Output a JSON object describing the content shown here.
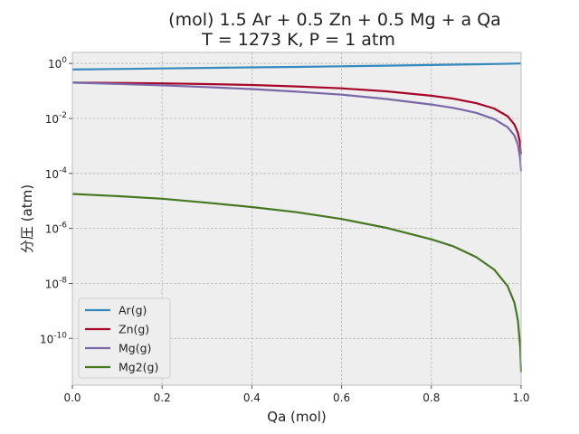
{
  "chart_data": {
    "type": "line",
    "title_line1": "(mol) 1.5 Ar + 0.5 Zn + 0.5 Mg + a Qa",
    "title_line2": "T = 1273 K, P = 1 atm",
    "xlabel": "Qa (mol)",
    "ylabel": "分圧 (atm)",
    "yscale": "log",
    "xlim": [
      0,
      1
    ],
    "ylim_exp": [
      -11.7,
      0.4
    ],
    "grid": true,
    "legend_position": "lower-left",
    "xticks": [
      "0.0",
      "0.2",
      "0.4",
      "0.6",
      "0.8",
      "1.0"
    ],
    "xtick_values": [
      0,
      0.2,
      0.4,
      0.6,
      0.8,
      1.0
    ],
    "yticks": [
      {
        "base": "10",
        "exp": "0",
        "value": 0
      },
      {
        "base": "10",
        "exp": "-2",
        "value": -2
      },
      {
        "base": "10",
        "exp": "-4",
        "value": -4
      },
      {
        "base": "10",
        "exp": "-6",
        "value": -6
      },
      {
        "base": "10",
        "exp": "-8",
        "value": -8
      },
      {
        "base": "10",
        "exp": "-10",
        "value": -10
      }
    ],
    "series": [
      {
        "name": "Ar(g)",
        "color": "#348abd",
        "x": [
          0,
          0.1,
          0.2,
          0.3,
          0.4,
          0.5,
          0.6,
          0.7,
          0.8,
          0.9,
          0.95,
          1.0
        ],
        "y": [
          0.6,
          0.63,
          0.66,
          0.69,
          0.72,
          0.75,
          0.79,
          0.83,
          0.88,
          0.93,
          0.96,
          1.0
        ]
      },
      {
        "name": "Zn(g)",
        "color": "#a60628",
        "x": [
          0,
          0.1,
          0.2,
          0.3,
          0.4,
          0.5,
          0.6,
          0.7,
          0.8,
          0.85,
          0.9,
          0.94,
          0.97,
          0.985,
          0.993,
          0.998,
          1.0
        ],
        "y": [
          0.2,
          0.196,
          0.188,
          0.178,
          0.164,
          0.146,
          0.124,
          0.097,
          0.067,
          0.052,
          0.036,
          0.023,
          0.012,
          0.006,
          0.003,
          0.0012,
          0.0005
        ]
      },
      {
        "name": "Mg(g)",
        "color": "#7a68a6",
        "x": [
          0,
          0.1,
          0.2,
          0.3,
          0.4,
          0.5,
          0.6,
          0.7,
          0.8,
          0.85,
          0.9,
          0.94,
          0.97,
          0.985,
          0.993,
          0.998,
          1.0
        ],
        "y": [
          0.2,
          0.18,
          0.16,
          0.138,
          0.117,
          0.094,
          0.073,
          0.051,
          0.032,
          0.024,
          0.016,
          0.0095,
          0.0048,
          0.0024,
          0.0011,
          0.00035,
          0.00012
        ]
      },
      {
        "name": "Mg2(g)",
        "color": "#467821",
        "x": [
          0,
          0.1,
          0.2,
          0.3,
          0.4,
          0.5,
          0.6,
          0.7,
          0.8,
          0.85,
          0.9,
          0.94,
          0.97,
          0.985,
          0.993,
          0.998,
          1.0
        ],
        "y": [
          1.8e-05,
          1.5e-05,
          1.2e-05,
          8.6e-06,
          6e-06,
          3.9e-06,
          2.2e-06,
          1.05e-06,
          4e-07,
          2.2e-07,
          9e-08,
          3.2e-08,
          8e-09,
          2e-09,
          4.5e-10,
          5e-11,
          6e-12
        ]
      }
    ]
  }
}
